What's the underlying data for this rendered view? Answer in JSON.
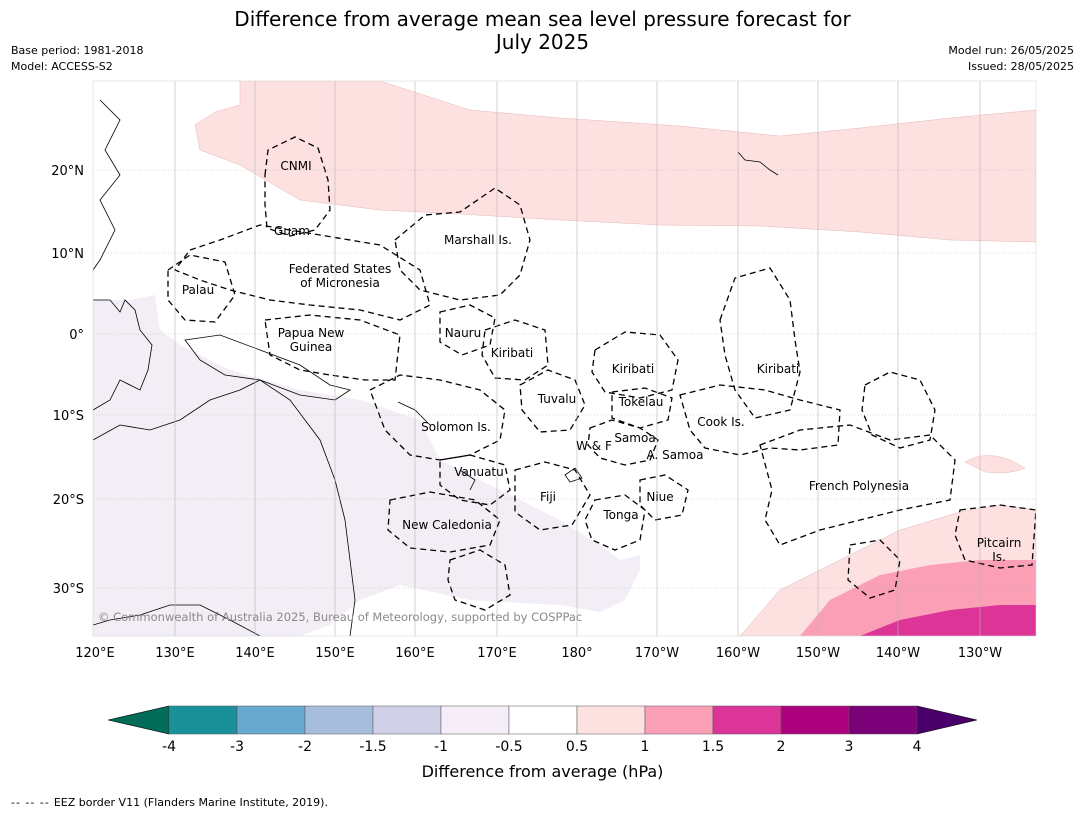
{
  "title": {
    "line1": "Difference from average mean sea level pressure forecast for",
    "line2": "July 2025"
  },
  "meta_left": {
    "base_period": "Base period: 1981-2018",
    "model": "Model: ACCESS-S2"
  },
  "meta_right": {
    "model_run": "Model run: 26/05/2025",
    "issued": "Issued: 28/05/2025"
  },
  "copyright": "© Commonwealth of Australia 2025, Bureau of Meteorology, supported by COSPPac",
  "lat_labels": [
    "20°N",
    "10°N",
    "0°",
    "10°S",
    "20°S",
    "30°S"
  ],
  "lon_labels": [
    "120°E",
    "130°E",
    "140°E",
    "150°E",
    "160°E",
    "170°E",
    "180°",
    "170°W",
    "160°W",
    "150°W",
    "140°W",
    "130°W"
  ],
  "regions": [
    {
      "name": "cnmi",
      "label": [
        "CNMI"
      ]
    },
    {
      "name": "guam",
      "label": [
        "Guam"
      ]
    },
    {
      "name": "marshall",
      "label": [
        "Marshall Is."
      ]
    },
    {
      "name": "fsm",
      "label": [
        "Federated States",
        "of Micronesia"
      ]
    },
    {
      "name": "palau",
      "label": [
        "Palau"
      ]
    },
    {
      "name": "png",
      "label": [
        "Papua New",
        "Guinea"
      ]
    },
    {
      "name": "nauru",
      "label": [
        "Nauru"
      ]
    },
    {
      "name": "kiribati-w",
      "label": [
        "Kiribati"
      ]
    },
    {
      "name": "kiribati-c",
      "label": [
        "Kiribati"
      ]
    },
    {
      "name": "kiribati-e",
      "label": [
        "Kiribati"
      ]
    },
    {
      "name": "tuvalu",
      "label": [
        "Tuvalu"
      ]
    },
    {
      "name": "tokelau",
      "label": [
        "Tokelau"
      ]
    },
    {
      "name": "cook",
      "label": [
        "Cook Is."
      ]
    },
    {
      "name": "solomon",
      "label": [
        "Solomon Is."
      ]
    },
    {
      "name": "samoa",
      "label": [
        "Samoa"
      ]
    },
    {
      "name": "wf",
      "label": [
        "W & F"
      ]
    },
    {
      "name": "asamoa",
      "label": [
        "A. Samoa"
      ]
    },
    {
      "name": "vanuatu",
      "label": [
        "Vanuatu"
      ]
    },
    {
      "name": "fiji",
      "label": [
        "Fiji"
      ]
    },
    {
      "name": "niue",
      "label": [
        "Niue"
      ]
    },
    {
      "name": "frpoly",
      "label": [
        "French Polynesia"
      ]
    },
    {
      "name": "tonga",
      "label": [
        "Tonga"
      ]
    },
    {
      "name": "newcal",
      "label": [
        "New Caledonia"
      ]
    },
    {
      "name": "pitcairn",
      "label": [
        "Pitcairn",
        "Is."
      ]
    }
  ],
  "colorbar": {
    "label": "Difference from average (hPa)",
    "ticks": [
      "-4",
      "-3",
      "-2",
      "-1.5",
      "-1",
      "-0.5",
      "0.5",
      "1",
      "1.5",
      "2",
      "3",
      "4"
    ],
    "colors": [
      "#1a9099",
      "#67a9cf",
      "#a6bddb",
      "#d0d1e6",
      "#f5eef8",
      "#ffffff",
      "#fde0e0",
      "#fa9fb5",
      "#dd3497",
      "#ae017e",
      "#7a0177"
    ],
    "under_color": "#016c59",
    "over_color": "#49006a"
  },
  "footer": {
    "dash": "--  --  --",
    "text": "EEZ border V11 (Flanders Marine Institute, 2019)."
  }
}
